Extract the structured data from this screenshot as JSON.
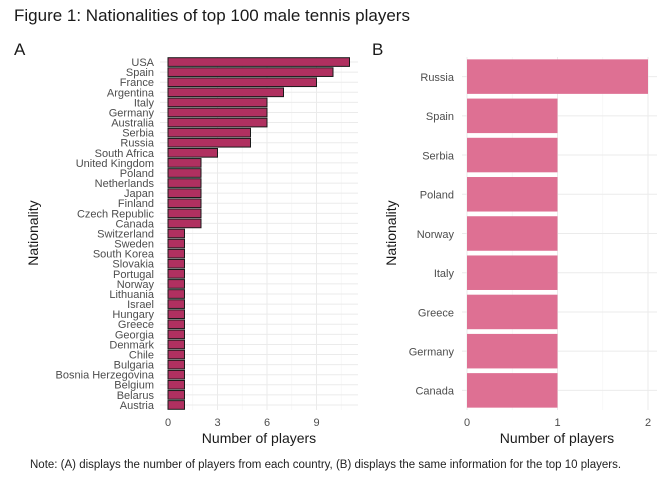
{
  "figure": {
    "title": "Figure 1: Nationalities of top 100 male tennis players",
    "note": "Note: (A) displays the number of players from each country, (B) displays the same information for the top 10 players."
  },
  "chart_data": [
    {
      "panel": "A",
      "type": "bar",
      "orientation": "horizontal",
      "xlabel": "Number of players",
      "ylabel": "Nationality",
      "xlim": [
        0,
        11.5
      ],
      "xticks": [
        0,
        3,
        6,
        9
      ],
      "grid": true,
      "bar_color": "#b03060",
      "bar_border": "#1a1a1a",
      "categories": [
        "USA",
        "Spain",
        "France",
        "Argentina",
        "Italy",
        "Germany",
        "Australia",
        "Serbia",
        "Russia",
        "South Africa",
        "United Kingdom",
        "Poland",
        "Netherlands",
        "Japan",
        "Finland",
        "Czech Republic",
        "Canada",
        "Switzerland",
        "Sweden",
        "South Korea",
        "Slovakia",
        "Portugal",
        "Norway",
        "Lithuania",
        "Israel",
        "Hungary",
        "Greece",
        "Georgia",
        "Denmark",
        "Chile",
        "Bulgaria",
        "Bosnia Herzegovina",
        "Belgium",
        "Belarus",
        "Austria"
      ],
      "values": [
        11,
        10,
        9,
        7,
        6,
        6,
        6,
        5,
        5,
        3,
        2,
        2,
        2,
        2,
        2,
        2,
        2,
        1,
        1,
        1,
        1,
        1,
        1,
        1,
        1,
        1,
        1,
        1,
        1,
        1,
        1,
        1,
        1,
        1,
        1
      ]
    },
    {
      "panel": "B",
      "type": "bar",
      "orientation": "horizontal",
      "xlabel": "Number of players",
      "ylabel": "Nationality",
      "xlim": [
        0,
        2.1
      ],
      "xticks": [
        0,
        1,
        2
      ],
      "grid": true,
      "bar_color": "#de7093",
      "categories": [
        "Russia",
        "Spain",
        "Serbia",
        "Poland",
        "Norway",
        "Italy",
        "Greece",
        "Germany",
        "Canada"
      ],
      "values": [
        2,
        1,
        1,
        1,
        1,
        1,
        1,
        1,
        1
      ]
    }
  ]
}
